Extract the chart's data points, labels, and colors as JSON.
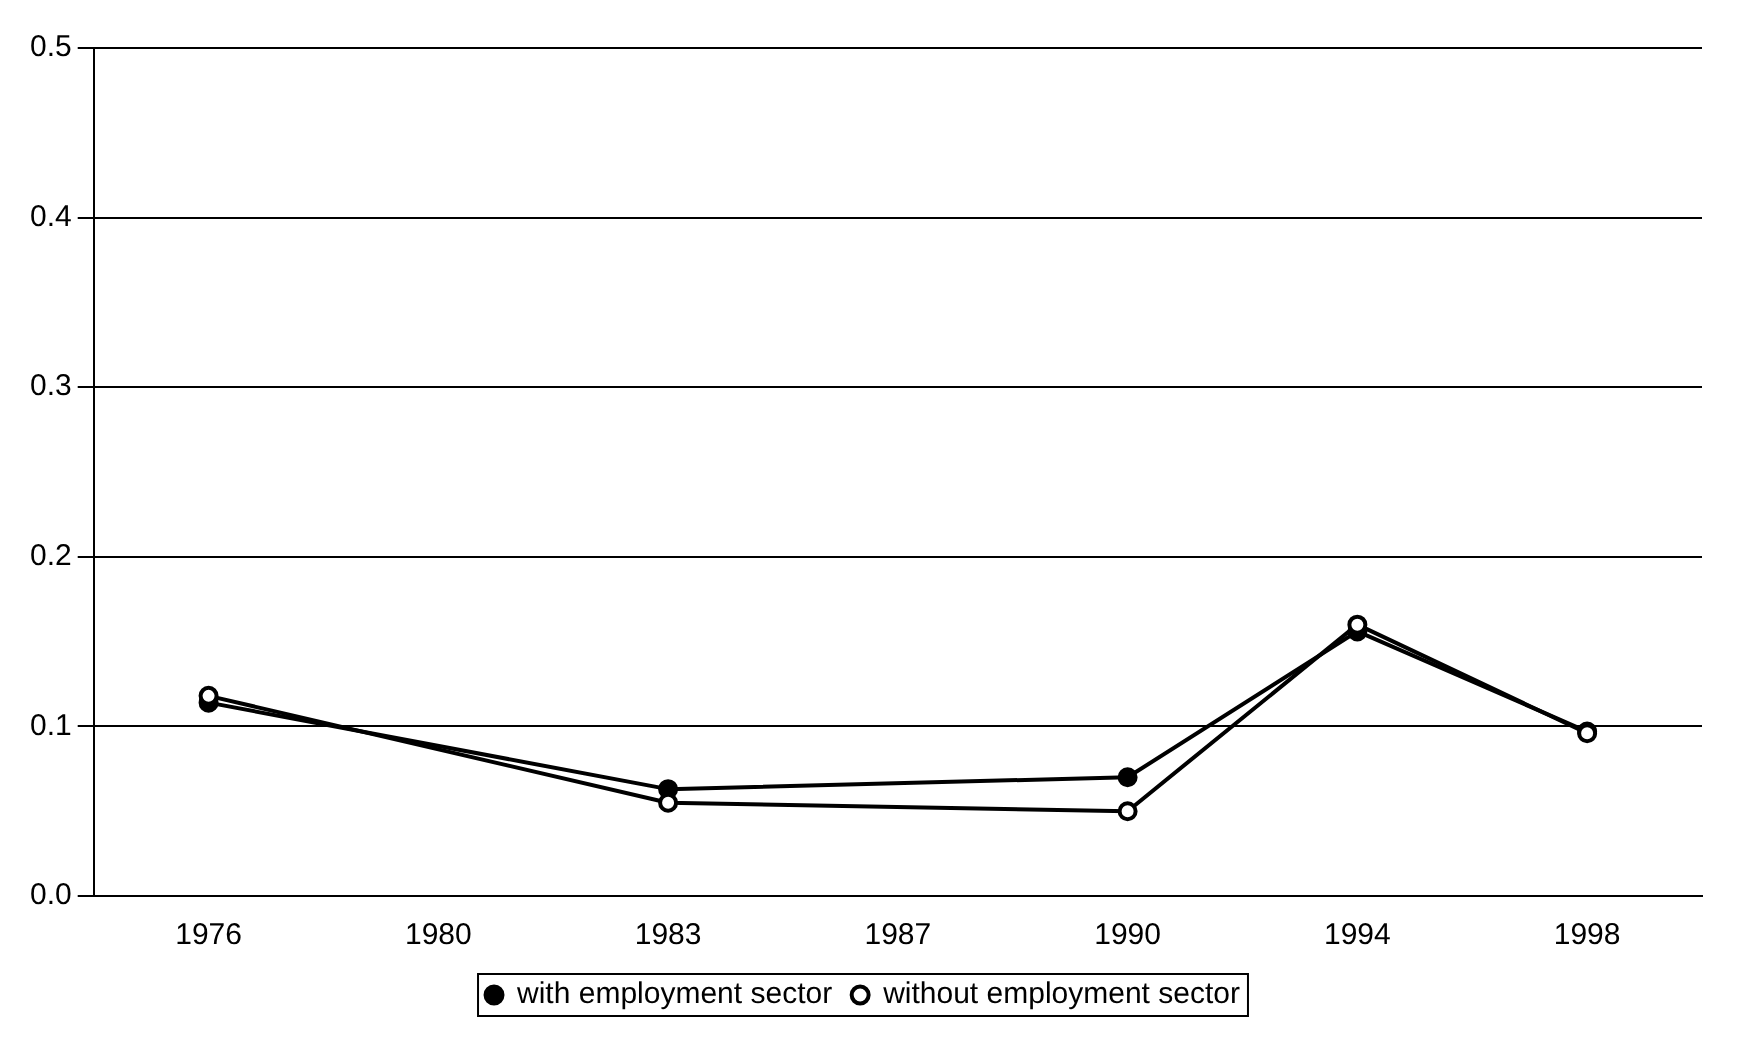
{
  "chart_data": {
    "type": "line",
    "categories": [
      "1976",
      "1980",
      "1983",
      "1987",
      "1990",
      "1994",
      "1998"
    ],
    "series": [
      {
        "name": "with employment sector",
        "color": "#000000",
        "values": [
          0.114,
          null,
          0.063,
          null,
          0.07,
          0.156,
          0.097
        ]
      },
      {
        "name": "without employment sector",
        "color": "#000000",
        "values": [
          0.118,
          null,
          0.055,
          null,
          0.05,
          0.16,
          0.096
        ]
      }
    ],
    "ylim": [
      0,
      0.5
    ],
    "yticks": [
      {
        "value": 0,
        "label": "0.0"
      },
      {
        "value": 0.1,
        "label": "0.1"
      },
      {
        "value": 0.2,
        "label": "0.2"
      },
      {
        "value": 0.3,
        "label": "0.3"
      },
      {
        "value": 0.4,
        "label": "0.4"
      },
      {
        "value": 0.5,
        "label": "0.5"
      }
    ],
    "grid": "y",
    "legend": "bottom",
    "marker": "circle",
    "line_style": "solid"
  }
}
